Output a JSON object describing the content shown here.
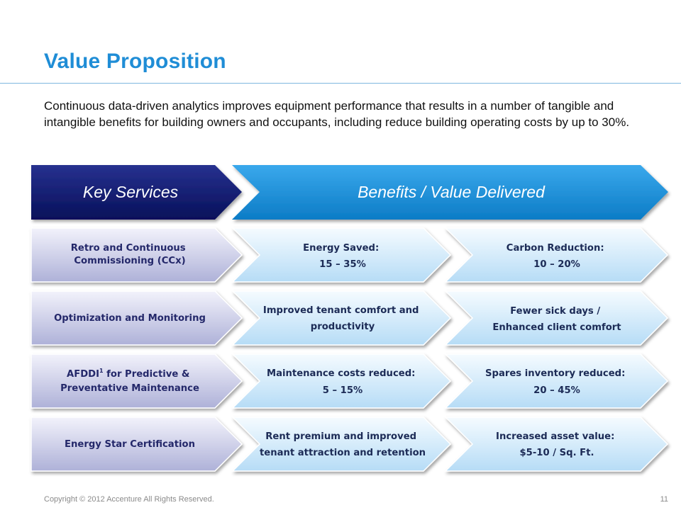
{
  "slide": {
    "title": "Value Proposition",
    "intro": "Continuous data-driven analytics improves equipment performance that results in a number of tangible and intangible benefits for building owners and occupants, including reduce building operating costs by up to 30%."
  },
  "headers": {
    "left": "Key Services",
    "right": "Benefits / Value Delivered"
  },
  "rows": [
    {
      "service": [
        "Retro and Continuous",
        "Commissioning (CCx)"
      ],
      "benefit_a": [
        "Energy Saved:",
        "15 – 35%"
      ],
      "benefit_b": [
        "Carbon Reduction:",
        "10 – 20%"
      ]
    },
    {
      "service": [
        "Optimization and Monitoring"
      ],
      "benefit_a": [
        "Improved tenant comfort and",
        "productivity"
      ],
      "benefit_b": [
        "Fewer sick days /",
        "Enhanced client  comfort"
      ]
    },
    {
      "service": [
        "AFDDI",
        "1",
        " for Predictive &",
        "Preventative Maintenance"
      ],
      "benefit_a": [
        "Maintenance costs reduced:",
        "5 – 15%"
      ],
      "benefit_b": [
        "Spares inventory reduced:",
        "20 – 45%"
      ]
    },
    {
      "service": [
        "Energy Star Certification"
      ],
      "benefit_a": [
        "Rent premium and improved",
        "tenant attraction and retention"
      ],
      "benefit_b": [
        "Increased asset value:",
        "$5-10 / Sq. Ft."
      ]
    }
  ],
  "footer": {
    "copyright": "Copyright © 2012 Accenture  All Rights Reserved.",
    "page": "11"
  },
  "colors": {
    "title": "#1f8dd6",
    "key_services_header": "#0d1a6e",
    "benefits_header": "#1a8fd8",
    "service_box": "#c9cbe6",
    "benefit_box": "#d3ebfb"
  }
}
